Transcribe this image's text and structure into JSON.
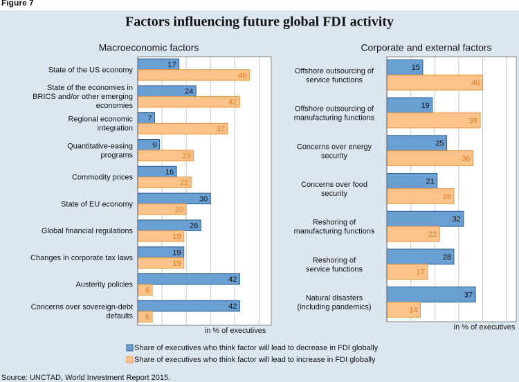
{
  "figure_label": "Figure 7",
  "title": "Factors influencing future global FDI activity",
  "source": "Source: UNCTAD, World Investment Report 2015.",
  "chart_data": [
    {
      "type": "hbar",
      "subtitle": "Macroeconomic factors",
      "xlabel": "in % of executives",
      "categories": [
        "State of the US economy",
        "State of the economies in\nBRICS and/or other emerging\neconomies",
        "Regional economic\nintegration",
        "Quantitative-easing\nprograms",
        "Commodity prices",
        "State of EU economy",
        "Global financial regulations",
        "Changes in corporate tax laws",
        "Austerity policies",
        "Concerns over sovereign-debt\ndefaults"
      ],
      "series": [
        {
          "name": "Share of executives who think factor will lead to decrease in FDI globally",
          "color": "#6a9fd4",
          "values": [
            17,
            24,
            7,
            9,
            16,
            30,
            26,
            19,
            42,
            42
          ]
        },
        {
          "name": "Share of executives who think factor will lead to increase in FDI globally",
          "color": "#fbc38a",
          "values": [
            46,
            42,
            37,
            23,
            22,
            20,
            19,
            19,
            6,
            6
          ]
        }
      ],
      "xlim": [
        0,
        55
      ],
      "xticks": [
        0,
        10,
        20,
        30,
        40,
        50
      ],
      "grid": true
    },
    {
      "type": "hbar",
      "subtitle": "Corporate and external factors",
      "xlabel": "in % of executives",
      "categories": [
        "Offshore outsourcing of\nservice functions",
        "Offshore outsourcing of\nmanufacturing functions",
        "Concerns over energy\nsecurity",
        "Concerns over food\nsecurity",
        "Reshoring  of\nmanufacturing functions",
        "Reshoring  of\nservice functions",
        "Natural disasters\n(including pandemics)"
      ],
      "series": [
        {
          "color": "#6a9fd4",
          "values": [
            15,
            19,
            25,
            21,
            32,
            28,
            37
          ]
        },
        {
          "color": "#fbc38a",
          "values": [
            40,
            39,
            36,
            28,
            22,
            17,
            14
          ]
        }
      ],
      "xlim": [
        0,
        54
      ],
      "xticks": [
        0,
        10,
        20,
        30,
        40,
        50
      ],
      "grid": true
    }
  ]
}
